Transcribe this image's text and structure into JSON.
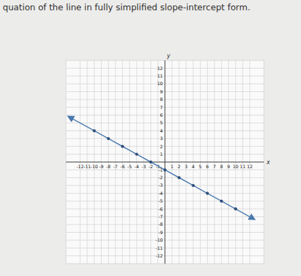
{
  "chart_data": {
    "type": "line",
    "title": "quation of the line in fully simplified slope-intercept form.",
    "x_label": "x",
    "y_label": "y",
    "series": [
      {
        "name": "line",
        "color": "#4a79ad",
        "marker": "circle",
        "line_style": "solid",
        "x": [
          -13.5,
          -10,
          -8,
          -6,
          -4,
          -2,
          0,
          2,
          4,
          6,
          8,
          10,
          12.5
        ],
        "values": [
          5.75,
          4,
          3,
          2,
          1,
          0,
          -1,
          -2,
          -3,
          -4,
          -5,
          -6,
          -7.25
        ]
      }
    ],
    "xlim": [
      -14,
      14
    ],
    "ylim": [
      -13,
      13
    ],
    "xticks": [
      -12,
      -11,
      -10,
      -9,
      -8,
      -7,
      -6,
      -5,
      -4,
      -3,
      -2,
      -1,
      1,
      2,
      3,
      4,
      5,
      6,
      7,
      8,
      9,
      10,
      11,
      12
    ],
    "yticks": [
      -12,
      -11,
      -10,
      -9,
      -8,
      -7,
      -6,
      -5,
      -4,
      -3,
      -2,
      -1,
      1,
      2,
      3,
      4,
      5,
      6,
      7,
      8,
      9,
      10,
      11,
      12
    ],
    "grid": true
  }
}
